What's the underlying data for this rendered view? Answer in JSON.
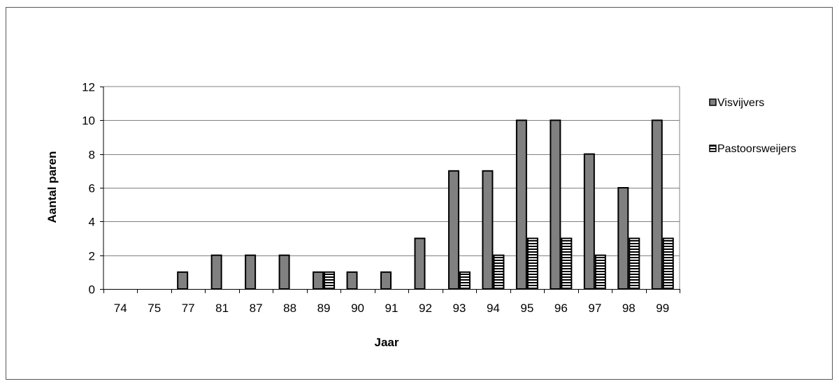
{
  "chart_data": {
    "type": "bar",
    "title": "",
    "xlabel": "Jaar",
    "ylabel": "Aantal paren",
    "ylim": [
      0,
      12
    ],
    "yticks": [
      0,
      2,
      4,
      6,
      8,
      10,
      12
    ],
    "grid": true,
    "legend_position": "right",
    "categories": [
      "74",
      "75",
      "77",
      "81",
      "87",
      "88",
      "89",
      "90",
      "91",
      "92",
      "93",
      "94",
      "95",
      "96",
      "97",
      "98",
      "99"
    ],
    "series": [
      {
        "name": "Visvijvers",
        "color": "#808080",
        "pattern": "solid",
        "values": [
          0,
          0,
          1,
          2,
          2,
          2,
          1,
          1,
          1,
          3,
          7,
          7,
          10,
          10,
          8,
          6,
          10
        ]
      },
      {
        "name": "Pastoorsweijers",
        "color": "#ffffff",
        "pattern": "horizontal-stripes",
        "values": [
          0,
          0,
          0,
          0,
          0,
          0,
          1,
          0,
          0,
          0,
          1,
          2,
          3,
          3,
          2,
          3,
          3
        ]
      }
    ]
  }
}
